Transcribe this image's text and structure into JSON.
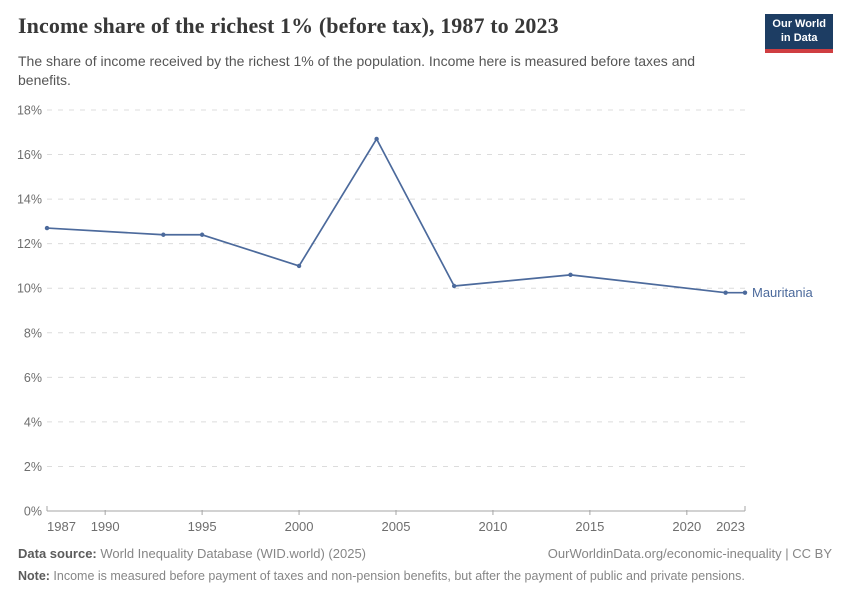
{
  "header": {
    "title": "Income share of the richest 1% (before tax), 1987 to 2023",
    "subtitle": "The share of income received by the richest 1% of the population. Income here is measured before taxes and benefits.",
    "logo": {
      "line1": "Our World",
      "line2": "in Data"
    }
  },
  "chart_data": {
    "type": "line",
    "title": "Income share of the richest 1% (before tax), 1987 to 2023",
    "series": [
      {
        "name": "Mauritania",
        "color": "#4C6A9C",
        "x": [
          1987,
          1993,
          1995,
          2000,
          2004,
          2008,
          2014,
          2022,
          2023
        ],
        "values": [
          12.7,
          12.4,
          12.4,
          11.0,
          16.7,
          10.1,
          10.6,
          9.8,
          9.8
        ]
      }
    ],
    "end_label": "Mauritania",
    "xlim": [
      1987,
      2023
    ],
    "ylim": [
      0,
      18
    ],
    "x_ticks": [
      1987,
      1990,
      1995,
      2000,
      2005,
      2010,
      2015,
      2020,
      2023
    ],
    "y_ticks": [
      0,
      2,
      4,
      6,
      8,
      10,
      12,
      14,
      16,
      18
    ],
    "y_tick_suffix": "%",
    "grid": "horizontal-dashed",
    "legend_position": "line-end-label"
  },
  "colors": {
    "line": "#4C6A9C",
    "grid": "#dcdcdc",
    "axis": "#a5a5a5",
    "tick_label": "#6e6e6e",
    "logo_bg": "#1d3d63",
    "logo_accent": "#cf3e41"
  },
  "footer": {
    "data_source_label": "Data source:",
    "data_source_value": " World Inequality Database (WID.world) (2025)",
    "link": "OurWorldinData.org/economic-inequality | CC BY",
    "note_label": "Note:",
    "note_value": " Income is measured before payment of taxes and non-pension benefits, but after the payment of public and private pensions."
  }
}
